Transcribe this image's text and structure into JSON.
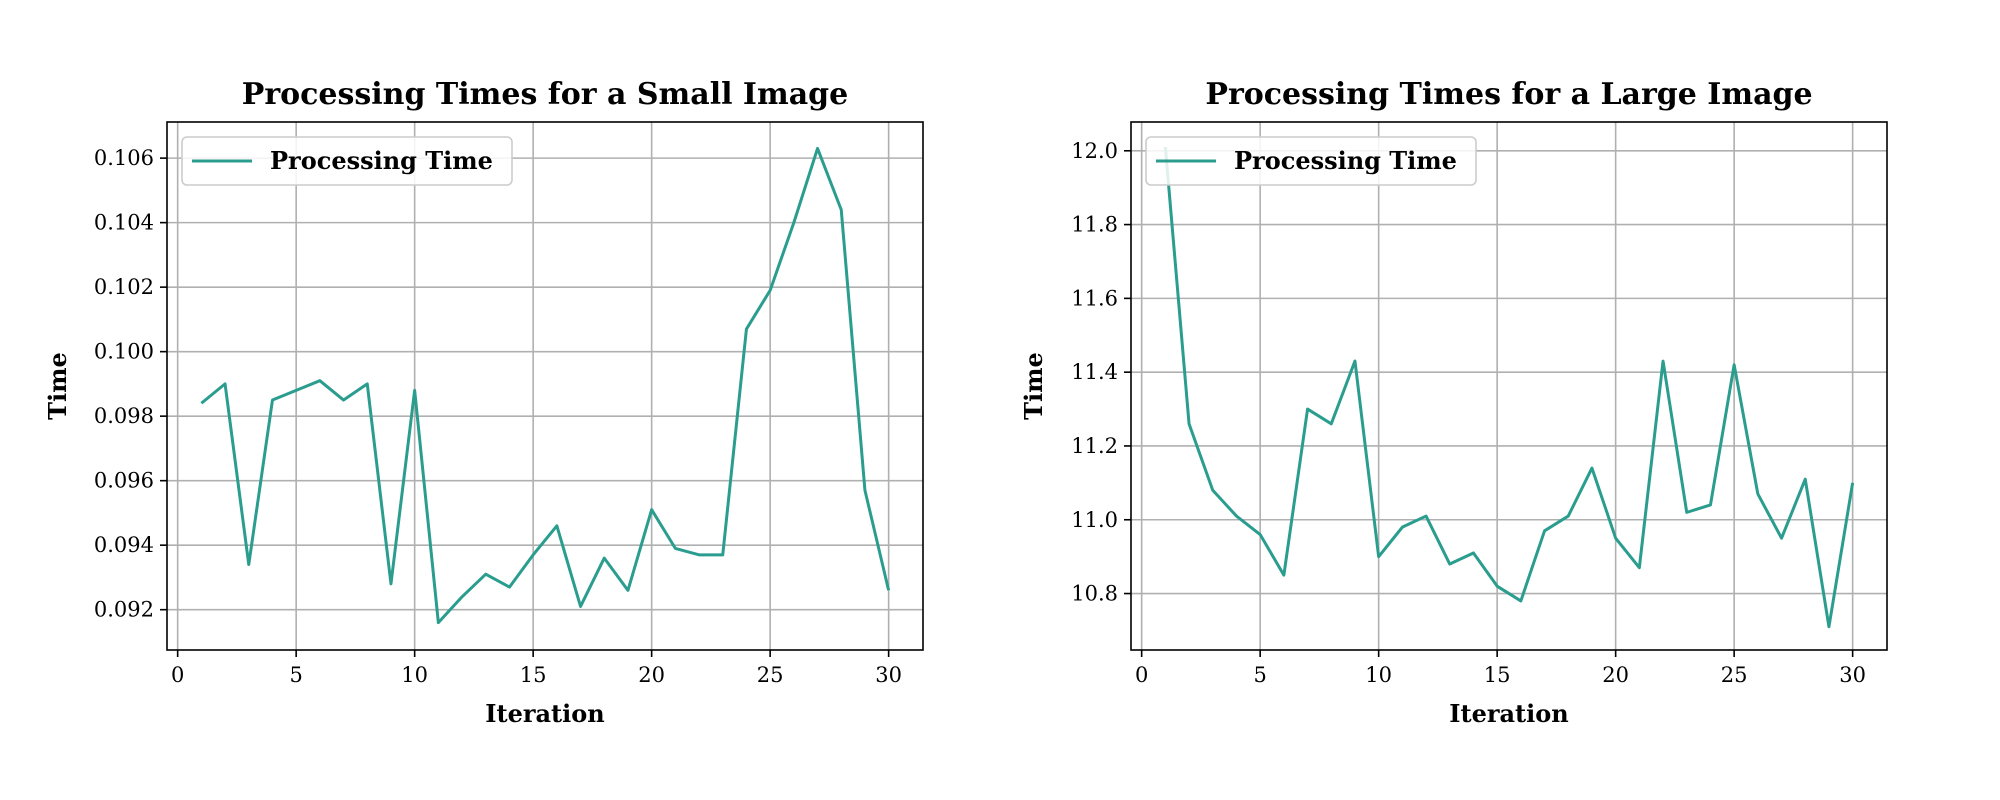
{
  "colors": {
    "series": "#2a9d8f"
  },
  "chart_data": [
    {
      "type": "line",
      "title": "Processing Times for a Small Image",
      "xlabel": "Iteration",
      "ylabel": "Time",
      "xlim": [
        -0.45,
        31.45
      ],
      "ylim": [
        0.09075,
        0.10712
      ],
      "xticks": [
        0,
        5,
        10,
        15,
        20,
        25,
        30
      ],
      "xtick_labels": [
        "0",
        "5",
        "10",
        "15",
        "20",
        "25",
        "30"
      ],
      "yticks": [
        0.092,
        0.094,
        0.096,
        0.098,
        0.1,
        0.102,
        0.104,
        0.106
      ],
      "ytick_labels": [
        "0.092",
        "0.094",
        "0.096",
        "0.098",
        "0.100",
        "0.102",
        "0.104",
        "0.106"
      ],
      "grid": true,
      "legend": "top-left",
      "series": [
        {
          "name": "Processing Time",
          "x": [
            1,
            2,
            3,
            4,
            5,
            6,
            7,
            8,
            9,
            10,
            11,
            12,
            13,
            14,
            15,
            16,
            17,
            18,
            19,
            20,
            21,
            22,
            23,
            24,
            25,
            26,
            27,
            28,
            29,
            30
          ],
          "values": [
            0.0984,
            0.099,
            0.0934,
            0.0985,
            0.0988,
            0.0991,
            0.0985,
            0.099,
            0.0928,
            0.0988,
            0.0916,
            0.0924,
            0.0931,
            0.0927,
            0.0937,
            0.0946,
            0.0921,
            0.0936,
            0.0926,
            0.0951,
            0.0939,
            0.0937,
            0.0937,
            0.1007,
            0.1019,
            0.104,
            0.1063,
            0.1044,
            0.0957,
            0.0926
          ]
        }
      ]
    },
    {
      "type": "line",
      "title": "Processing Times for a Large Image",
      "xlabel": "Iteration",
      "ylabel": "Time",
      "xlim": [
        -0.45,
        31.45
      ],
      "ylim": [
        10.647,
        12.078
      ],
      "xticks": [
        0,
        5,
        10,
        15,
        20,
        25,
        30
      ],
      "xtick_labels": [
        "0",
        "5",
        "10",
        "15",
        "20",
        "25",
        "30"
      ],
      "yticks": [
        10.8,
        11.0,
        11.2,
        11.4,
        11.6,
        11.8,
        12.0
      ],
      "ytick_labels": [
        "10.8",
        "11.0",
        "11.2",
        "11.4",
        "11.6",
        "11.8",
        "12.0"
      ],
      "grid": true,
      "legend": "top-left",
      "series": [
        {
          "name": "Processing Time",
          "x": [
            1,
            2,
            3,
            4,
            5,
            6,
            7,
            8,
            9,
            10,
            11,
            12,
            13,
            14,
            15,
            16,
            17,
            18,
            19,
            20,
            21,
            22,
            23,
            24,
            25,
            26,
            27,
            28,
            29,
            30
          ],
          "values": [
            12.01,
            11.26,
            11.08,
            11.01,
            10.96,
            10.85,
            11.3,
            11.26,
            11.43,
            10.9,
            10.98,
            11.01,
            10.88,
            10.91,
            10.82,
            10.78,
            10.97,
            11.01,
            11.14,
            10.95,
            10.87,
            11.43,
            11.02,
            11.04,
            11.42,
            11.07,
            10.95,
            11.11,
            10.71,
            11.1
          ]
        }
      ]
    }
  ]
}
